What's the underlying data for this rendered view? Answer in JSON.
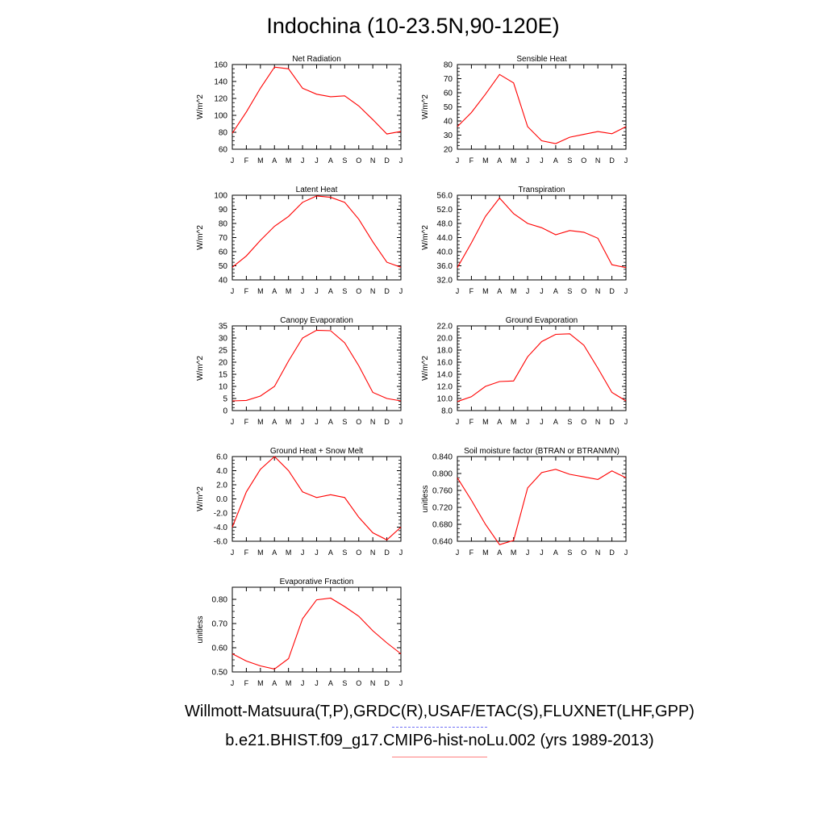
{
  "title": "Indochina (10-23.5N,90-120E)",
  "footer": {
    "obs_label": "Willmott-Matsuura(T,P),GRDC(R),USAF/ETAC(S),FLUXNET(LHF,GPP)",
    "model_label": "b.e21.BHIST.f09_g17.CMIP6-hist-noLu.002 (yrs 1989-2013)"
  },
  "colors": {
    "model_line": "#ff0000",
    "obs_line": "#6f6ff5",
    "axis": "#000000"
  },
  "chart_data": [
    {
      "type": "line",
      "title": "Net Radiation",
      "xlabel": "",
      "ylabel": "W/m^2",
      "categories": [
        "J",
        "F",
        "M",
        "A",
        "M",
        "J",
        "J",
        "A",
        "S",
        "O",
        "N",
        "D",
        "J"
      ],
      "yticks": [
        "60",
        "80",
        "100",
        "120",
        "140",
        "160"
      ],
      "ylim": [
        60,
        160
      ],
      "series": [
        {
          "values": [
            79,
            104,
            132,
            157,
            155,
            132,
            125,
            122,
            123,
            111,
            95,
            78,
            81
          ]
        }
      ]
    },
    {
      "type": "line",
      "title": "Sensible Heat",
      "xlabel": "",
      "ylabel": "W/m^2",
      "categories": [
        "J",
        "F",
        "M",
        "A",
        "M",
        "J",
        "J",
        "A",
        "S",
        "O",
        "N",
        "D",
        "J"
      ],
      "yticks": [
        "20",
        "30",
        "40",
        "50",
        "60",
        "70",
        "80"
      ],
      "ylim": [
        20,
        80
      ],
      "series": [
        {
          "values": [
            36,
            46,
            59,
            73,
            67,
            36,
            26,
            24,
            28.5,
            30.5,
            32.5,
            31,
            36
          ]
        }
      ]
    },
    {
      "type": "line",
      "title": "Latent Heat",
      "xlabel": "",
      "ylabel": "W/m^2",
      "categories": [
        "J",
        "F",
        "M",
        "A",
        "M",
        "J",
        "J",
        "A",
        "S",
        "O",
        "N",
        "D",
        "J"
      ],
      "yticks": [
        "40",
        "50",
        "60",
        "70",
        "80",
        "90",
        "100"
      ],
      "ylim": [
        40,
        100
      ],
      "series": [
        {
          "values": [
            49,
            57,
            68,
            78,
            85,
            95,
            99.5,
            98.5,
            95,
            83,
            67,
            52.5,
            49
          ]
        }
      ]
    },
    {
      "type": "line",
      "title": "Transpiration",
      "xlabel": "",
      "ylabel": "W/m^2",
      "categories": [
        "J",
        "F",
        "M",
        "A",
        "M",
        "J",
        "J",
        "A",
        "S",
        "O",
        "N",
        "D",
        "J"
      ],
      "yticks": [
        "32.0",
        "36.0",
        "40.0",
        "44.0",
        "48.0",
        "52.0",
        "56.0"
      ],
      "ylim": [
        32,
        56
      ],
      "series": [
        {
          "values": [
            35.5,
            42.5,
            50,
            55.2,
            50.8,
            48,
            46.8,
            44.8,
            46,
            45.5,
            43.8,
            36.3,
            35.5
          ]
        }
      ]
    },
    {
      "type": "line",
      "title": "Canopy Evaporation",
      "xlabel": "",
      "ylabel": "W/m^2",
      "categories": [
        "J",
        "F",
        "M",
        "A",
        "M",
        "J",
        "J",
        "A",
        "S",
        "O",
        "N",
        "D",
        "J"
      ],
      "yticks": [
        "0",
        "5",
        "10",
        "15",
        "20",
        "25",
        "30",
        "35"
      ],
      "ylim": [
        0,
        35
      ],
      "series": [
        {
          "values": [
            4,
            4.2,
            6,
            10,
            20.5,
            30,
            33.2,
            33,
            28,
            18.5,
            7.5,
            5,
            4
          ]
        }
      ]
    },
    {
      "type": "line",
      "title": "Ground Evaporation",
      "xlabel": "",
      "ylabel": "W/m^2",
      "categories": [
        "J",
        "F",
        "M",
        "A",
        "M",
        "J",
        "J",
        "A",
        "S",
        "O",
        "N",
        "D",
        "J"
      ],
      "yticks": [
        "8.0",
        "10.0",
        "12.0",
        "14.0",
        "16.0",
        "18.0",
        "20.0",
        "22.0"
      ],
      "ylim": [
        8,
        22
      ],
      "series": [
        {
          "values": [
            9.5,
            10.3,
            12,
            12.8,
            12.9,
            16.9,
            19.4,
            20.6,
            20.7,
            18.8,
            15,
            11,
            9.6
          ]
        }
      ]
    },
    {
      "type": "line",
      "title": "Ground Heat + Snow Melt",
      "xlabel": "",
      "ylabel": "W/m^2",
      "categories": [
        "J",
        "F",
        "M",
        "A",
        "M",
        "J",
        "J",
        "A",
        "S",
        "O",
        "N",
        "D",
        "J"
      ],
      "yticks": [
        "-6.0",
        "-4.0",
        "-2.0",
        "0.0",
        "2.0",
        "4.0",
        "6.0"
      ],
      "ylim": [
        -6,
        6
      ],
      "series": [
        {
          "values": [
            -4,
            1,
            4.2,
            6,
            4,
            1,
            0.2,
            0.6,
            0.2,
            -2.6,
            -4.8,
            -5.8,
            -4
          ]
        }
      ]
    },
    {
      "type": "line",
      "title": "Soil moisture factor (BTRAN or BTRANMN)",
      "xlabel": "",
      "ylabel": "unitless",
      "categories": [
        "J",
        "F",
        "M",
        "A",
        "M",
        "J",
        "J",
        "A",
        "S",
        "O",
        "N",
        "D",
        "J"
      ],
      "yticks": [
        "0.640",
        "0.680",
        "0.720",
        "0.760",
        "0.800",
        "0.840"
      ],
      "ylim": [
        0.64,
        0.84
      ],
      "series": [
        {
          "values": [
            0.79,
            0.737,
            0.68,
            0.632,
            0.642,
            0.766,
            0.802,
            0.81,
            0.798,
            0.792,
            0.786,
            0.806,
            0.79
          ]
        }
      ]
    },
    {
      "type": "line",
      "title": "Evaporative Fraction",
      "xlabel": "",
      "ylabel": "unitless",
      "categories": [
        "J",
        "F",
        "M",
        "A",
        "M",
        "J",
        "J",
        "A",
        "S",
        "O",
        "N",
        "D",
        "J"
      ],
      "yticks": [
        "0.50",
        "0.60",
        "0.70",
        "0.80"
      ],
      "ylim": [
        0.5,
        0.85
      ],
      "series": [
        {
          "values": [
            0.575,
            0.545,
            0.525,
            0.512,
            0.555,
            0.72,
            0.798,
            0.805,
            0.77,
            0.73,
            0.67,
            0.62,
            0.575
          ]
        }
      ]
    }
  ]
}
